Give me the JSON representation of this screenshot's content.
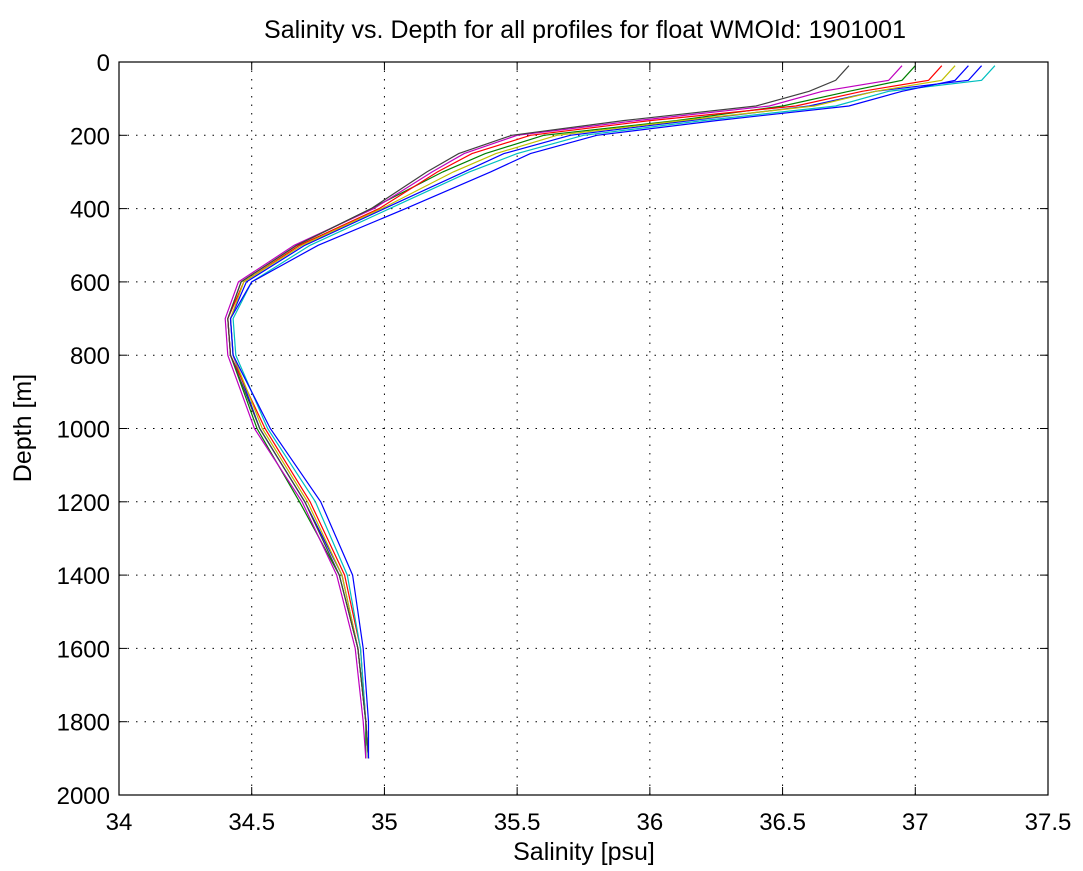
{
  "chart_data": {
    "type": "line",
    "title": "Salinity vs. Depth for all profiles for float WMOId: 1901001",
    "xlabel": "Salinity [psu]",
    "ylabel": "Depth [m]",
    "xlim": [
      34,
      37.5
    ],
    "ylim": [
      0,
      2000
    ],
    "y_reversed": true,
    "grid": true,
    "x_ticks": [
      "34",
      "34.5",
      "35",
      "35.5",
      "36",
      "36.5",
      "37",
      "37.5"
    ],
    "y_ticks": [
      "0",
      "200",
      "400",
      "600",
      "800",
      "1000",
      "1200",
      "1400",
      "1600",
      "1800",
      "2000"
    ],
    "x_tick_values": [
      34,
      34.5,
      35,
      35.5,
      36,
      36.5,
      37,
      37.5
    ],
    "y_tick_values": [
      0,
      200,
      400,
      600,
      800,
      1000,
      1200,
      1400,
      1600,
      1800,
      2000
    ],
    "series_colors": [
      "#0000ff",
      "#008000",
      "#ff0000",
      "#00bfbf",
      "#bf00bf",
      "#bfbf00",
      "#404040"
    ],
    "series": [
      {
        "depth": [
          10,
          50,
          80,
          120,
          160,
          200,
          250,
          300,
          400,
          500,
          600,
          700,
          800,
          1000,
          1200,
          1400,
          1600,
          1800,
          1900
        ],
        "salinity": [
          37.25,
          37.2,
          36.85,
          36.6,
          36.15,
          35.7,
          35.45,
          35.3,
          35.0,
          34.7,
          34.48,
          34.42,
          34.43,
          34.53,
          34.7,
          34.84,
          34.9,
          34.93,
          34.94
        ]
      },
      {
        "depth": [
          10,
          50,
          80,
          120,
          160,
          200,
          250,
          300,
          400,
          500,
          600,
          700,
          800,
          1000,
          1200,
          1400,
          1600,
          1800,
          1900
        ],
        "salinity": [
          37.0,
          36.95,
          36.75,
          36.5,
          36.1,
          35.6,
          35.38,
          35.22,
          34.95,
          34.67,
          34.46,
          34.41,
          34.42,
          34.52,
          34.68,
          34.83,
          34.9,
          34.93,
          34.93
        ]
      },
      {
        "depth": [
          10,
          50,
          80,
          120,
          160,
          200,
          250,
          300,
          400,
          500,
          600,
          700,
          800,
          1000,
          1200,
          1400,
          1600,
          1800,
          1900
        ],
        "salinity": [
          37.1,
          37.05,
          36.8,
          36.55,
          36.0,
          35.55,
          35.33,
          35.2,
          34.98,
          34.68,
          34.47,
          34.41,
          34.42,
          34.55,
          34.72,
          34.85,
          34.91,
          34.93,
          34.94
        ]
      },
      {
        "depth": [
          10,
          50,
          80,
          120,
          160,
          200,
          250,
          300,
          400,
          500,
          600,
          700,
          800,
          1000,
          1200,
          1400,
          1600,
          1800,
          1900
        ],
        "salinity": [
          37.3,
          37.25,
          36.9,
          36.7,
          36.2,
          35.75,
          35.5,
          35.32,
          35.02,
          34.72,
          34.5,
          34.43,
          34.44,
          34.56,
          34.74,
          34.86,
          34.91,
          34.93,
          34.94
        ]
      },
      {
        "depth": [
          10,
          50,
          80,
          120,
          160,
          200,
          250,
          300,
          400,
          500,
          600,
          700,
          800,
          1000,
          1200,
          1400,
          1600,
          1800,
          1900
        ],
        "salinity": [
          36.95,
          36.9,
          36.65,
          36.45,
          35.95,
          35.5,
          35.3,
          35.18,
          34.96,
          34.66,
          34.45,
          34.4,
          34.41,
          34.51,
          34.69,
          34.82,
          34.89,
          34.92,
          34.93
        ]
      },
      {
        "depth": [
          10,
          50,
          80,
          120,
          160,
          200,
          250,
          300,
          400,
          500,
          600,
          700,
          800,
          1000,
          1200,
          1400,
          1600,
          1800,
          1900
        ],
        "salinity": [
          37.15,
          37.1,
          36.85,
          36.62,
          36.12,
          35.65,
          35.42,
          35.26,
          34.99,
          34.69,
          34.47,
          34.42,
          34.43,
          34.54,
          34.71,
          34.84,
          34.9,
          34.93,
          34.94
        ]
      },
      {
        "depth": [
          10,
          50,
          80,
          120,
          160,
          200,
          250,
          300,
          400,
          500,
          600,
          700,
          800,
          1000,
          1200,
          1400,
          1600,
          1800,
          1900
        ],
        "salinity": [
          36.75,
          36.7,
          36.6,
          36.4,
          35.9,
          35.48,
          35.28,
          35.16,
          34.95,
          34.67,
          34.46,
          34.41,
          34.42,
          34.53,
          34.7,
          34.83,
          34.9,
          34.93,
          34.94
        ]
      },
      {
        "depth": [
          10,
          50,
          80,
          120,
          160,
          200,
          250,
          300,
          400,
          500,
          600,
          700,
          800,
          1000,
          1200,
          1400,
          1600,
          1800,
          1900
        ],
        "salinity": [
          37.2,
          37.15,
          36.95,
          36.75,
          36.25,
          35.8,
          35.55,
          35.4,
          35.08,
          34.75,
          34.5,
          34.42,
          34.43,
          34.57,
          34.76,
          34.88,
          34.92,
          34.94,
          34.94
        ]
      }
    ]
  }
}
